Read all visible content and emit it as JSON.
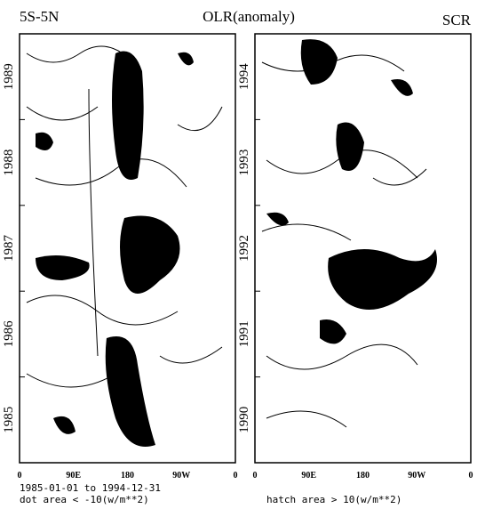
{
  "header": {
    "left": "5S-5N",
    "title": "OLR(anomaly)",
    "right": "SCR"
  },
  "panels": [
    {
      "y_labels": [
        "1985",
        "1986",
        "1987",
        "1988",
        "1989"
      ],
      "x_labels": [
        "0",
        "90E",
        "180",
        "90W",
        "0"
      ]
    },
    {
      "y_labels": [
        "1990",
        "1991",
        "1992",
        "1993",
        "1994"
      ],
      "x_labels": [
        "0",
        "90E",
        "180",
        "90W",
        "0"
      ]
    }
  ],
  "footer": {
    "dates": "1985-01-01 to 1994-12-31",
    "dot_note": "dot area < -10(w/m**2)",
    "hatch_note": "hatch area > 10(w/m**2)"
  }
}
